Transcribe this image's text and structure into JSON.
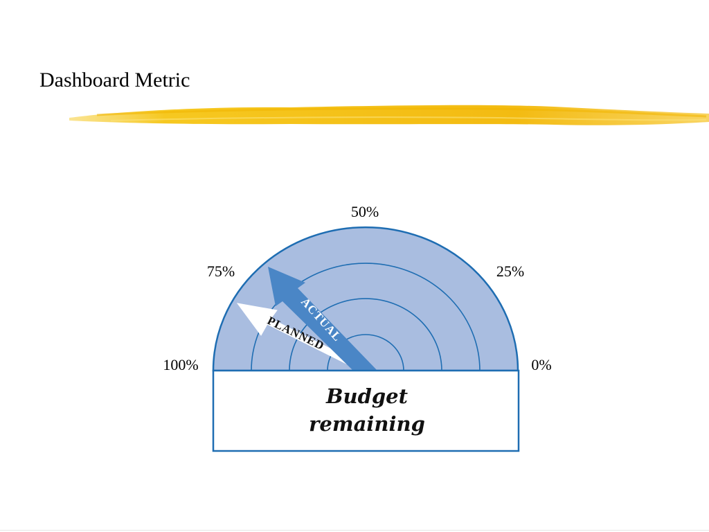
{
  "slide": {
    "title": "Dashboard Metric"
  },
  "gauge": {
    "tick_labels": [
      "100%",
      "75%",
      "50%",
      "25%",
      "0%"
    ],
    "planned_label": "PLANNED",
    "actual_label": "ACTUAL",
    "box_text": [
      "Budget",
      "remaining"
    ]
  },
  "colors": {
    "gauge_fill": "#a9bde0",
    "gauge_stroke": "#1e6db2",
    "actual_arrow": "#4a86c6",
    "planned_arrow": "#ffffff",
    "title_stroke": "#f5c518"
  }
}
